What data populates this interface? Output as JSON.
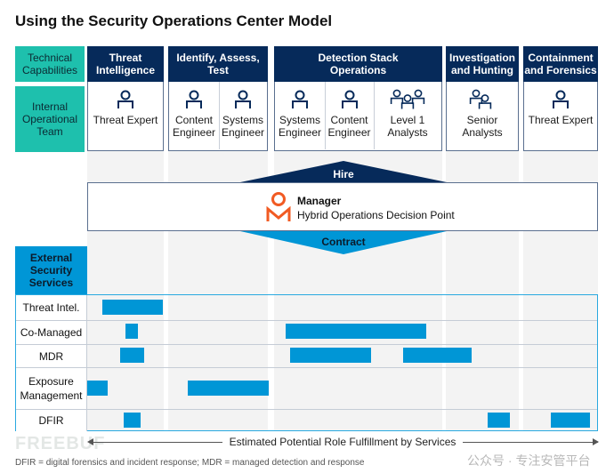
{
  "title": "Using the Security Operations Center Model",
  "labels": {
    "technical_capabilities": "Technical Capabilities",
    "internal_team": "Internal Operational Team",
    "external_services": "External Security Services"
  },
  "capabilities": [
    {
      "title": "Threat Intelligence",
      "roles": [
        "Threat Expert"
      ]
    },
    {
      "title": "Identify, Assess, Test",
      "roles": [
        "Content Engineer",
        "Systems Engineer"
      ]
    },
    {
      "title": "Detection Stack Operations",
      "roles": [
        "Systems Engineer",
        "Content Engineer",
        "Level 1 Analysts"
      ]
    },
    {
      "title": "Investigation and Hunting",
      "roles": [
        "Senior Analysts"
      ]
    },
    {
      "title": "Containment and Forensics",
      "roles": [
        "Threat Expert"
      ]
    }
  ],
  "hire": "Hire",
  "contract": "Contract",
  "manager": {
    "title": "Manager",
    "subtitle": "Hybrid Operations Decision Point",
    "accent": "#f15a22"
  },
  "services": [
    "Threat Intel.",
    "Co-Managed",
    "MDR",
    "Exposure Management",
    "DFIR"
  ],
  "axis_label": "Estimated Potential Role Fulfillment by Services",
  "footnote": "DFIR = digital forensics and incident response; MDR = managed detection and response",
  "watermark": {
    "left": "FREEBUF",
    "right": "公众号 · 专注安管平台"
  },
  "colors": {
    "navy": "#062a5a",
    "teal": "#1ec0ad",
    "blue": "#0096d6"
  }
}
